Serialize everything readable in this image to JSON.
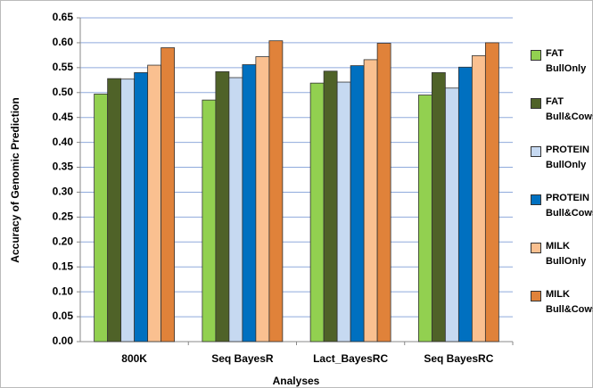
{
  "chart_data": {
    "type": "bar",
    "y_label": "Accuracy of Genomic Prediction",
    "x_label": "Analyses",
    "categories": [
      "800K",
      "Seq BayesR",
      "Lact_BayesRC",
      "Seq BayesRC"
    ],
    "series": [
      {
        "name": "FAT BullOnly",
        "color": "#92d050",
        "values": [
          0.497,
          0.485,
          0.519,
          0.495
        ]
      },
      {
        "name": "FAT Bull&Cows",
        "color": "#4f6228",
        "values": [
          0.528,
          0.542,
          0.543,
          0.54
        ]
      },
      {
        "name": "PROTEIN BullOnly",
        "color": "#c6d9f1",
        "values": [
          0.527,
          0.53,
          0.521,
          0.509
        ]
      },
      {
        "name": "PROTEIN Bull&Cows",
        "color": "#0070c0",
        "values": [
          0.54,
          0.556,
          0.554,
          0.551
        ]
      },
      {
        "name": "MILK BullOnly",
        "color": "#fac090",
        "values": [
          0.555,
          0.572,
          0.566,
          0.574
        ]
      },
      {
        "name": "MILK Bull&Cows",
        "color": "#e0823a",
        "values": [
          0.59,
          0.604,
          0.599,
          0.6
        ]
      }
    ],
    "ylim": [
      0,
      0.65
    ],
    "yticks": [
      {
        "value": 0,
        "label": "0.00"
      },
      {
        "value": 0.05,
        "label": "0.05"
      },
      {
        "value": 0.1,
        "label": "0.10"
      },
      {
        "value": 0.15,
        "label": "0.15"
      },
      {
        "value": 0.2,
        "label": "0.20"
      },
      {
        "value": 0.25,
        "label": "0.25"
      },
      {
        "value": 0.3,
        "label": "0.30"
      },
      {
        "value": 0.35,
        "label": "0.35"
      },
      {
        "value": 0.4,
        "label": "0.40"
      },
      {
        "value": 0.45,
        "label": "0.45"
      },
      {
        "value": 0.5,
        "label": "0.50"
      },
      {
        "value": 0.55,
        "label": "0.55"
      },
      {
        "value": 0.6,
        "label": "0.60"
      },
      {
        "value": 0.65,
        "label": "0.65"
      }
    ],
    "grid": true,
    "legend": "right"
  }
}
